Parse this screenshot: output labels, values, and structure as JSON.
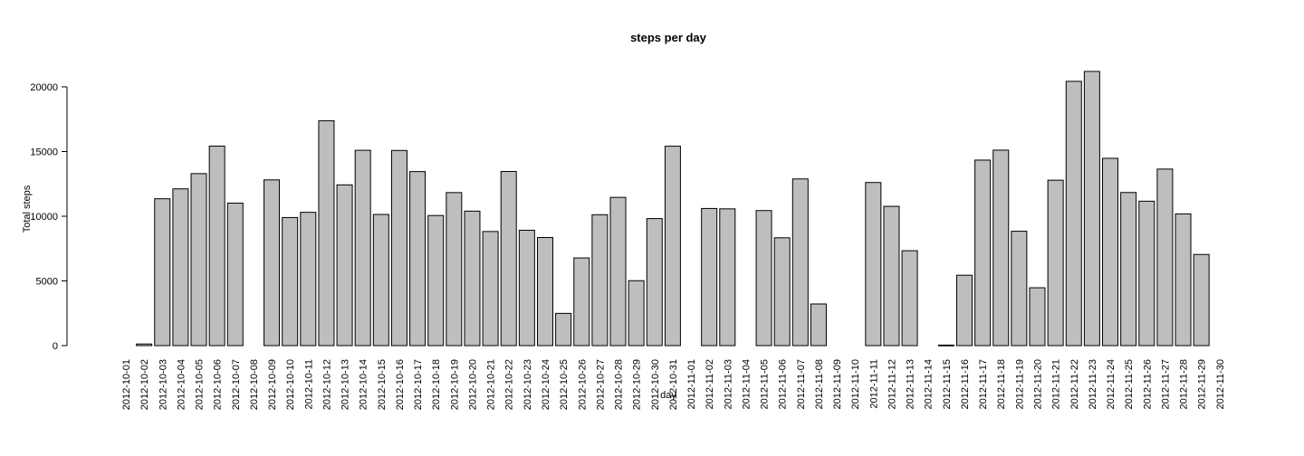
{
  "chart_data": {
    "type": "bar",
    "title": "steps per day",
    "xlabel": "day",
    "ylabel": "Total steps",
    "ylim": [
      0,
      22000
    ],
    "yticks": [
      0,
      5000,
      10000,
      15000,
      20000
    ],
    "ytick_labels": [
      "0",
      "5000",
      "10000",
      "15000",
      "20000"
    ],
    "grid": false,
    "bar_color": "#bebebe",
    "bar_border": "#000000",
    "categories": [
      "2012-10-01",
      "2012-10-02",
      "2012-10-03",
      "2012-10-04",
      "2012-10-05",
      "2012-10-06",
      "2012-10-07",
      "2012-10-08",
      "2012-10-09",
      "2012-10-10",
      "2012-10-11",
      "2012-10-12",
      "2012-10-13",
      "2012-10-14",
      "2012-10-15",
      "2012-10-16",
      "2012-10-17",
      "2012-10-18",
      "2012-10-19",
      "2012-10-20",
      "2012-10-21",
      "2012-10-22",
      "2012-10-23",
      "2012-10-24",
      "2012-10-25",
      "2012-10-26",
      "2012-10-27",
      "2012-10-28",
      "2012-10-29",
      "2012-10-30",
      "2012-10-31",
      "2012-11-01",
      "2012-11-02",
      "2012-11-03",
      "2012-11-04",
      "2012-11-05",
      "2012-11-06",
      "2012-11-07",
      "2012-11-08",
      "2012-11-09",
      "2012-11-10",
      "2012-11-11",
      "2012-11-12",
      "2012-11-13",
      "2012-11-14",
      "2012-11-15",
      "2012-11-16",
      "2012-11-17",
      "2012-11-18",
      "2012-11-19",
      "2012-11-20",
      "2012-11-21",
      "2012-11-22",
      "2012-11-23",
      "2012-11-24",
      "2012-11-25",
      "2012-11-26",
      "2012-11-27",
      "2012-11-28",
      "2012-11-29",
      "2012-11-30"
    ],
    "values": [
      null,
      126,
      11352,
      12116,
      13294,
      15420,
      11015,
      null,
      12811,
      9900,
      10304,
      17382,
      12426,
      15098,
      10139,
      15084,
      13452,
      10056,
      11829,
      10395,
      8821,
      13460,
      8918,
      8355,
      2492,
      6778,
      10119,
      11458,
      5018,
      9819,
      15414,
      null,
      10600,
      10571,
      null,
      10439,
      8334,
      12883,
      3219,
      null,
      null,
      12608,
      10765,
      7336,
      null,
      41,
      5441,
      14339,
      15110,
      8841,
      4472,
      12787,
      20427,
      21194,
      14478,
      11834,
      11162,
      13646,
      10183,
      7047,
      null
    ]
  }
}
